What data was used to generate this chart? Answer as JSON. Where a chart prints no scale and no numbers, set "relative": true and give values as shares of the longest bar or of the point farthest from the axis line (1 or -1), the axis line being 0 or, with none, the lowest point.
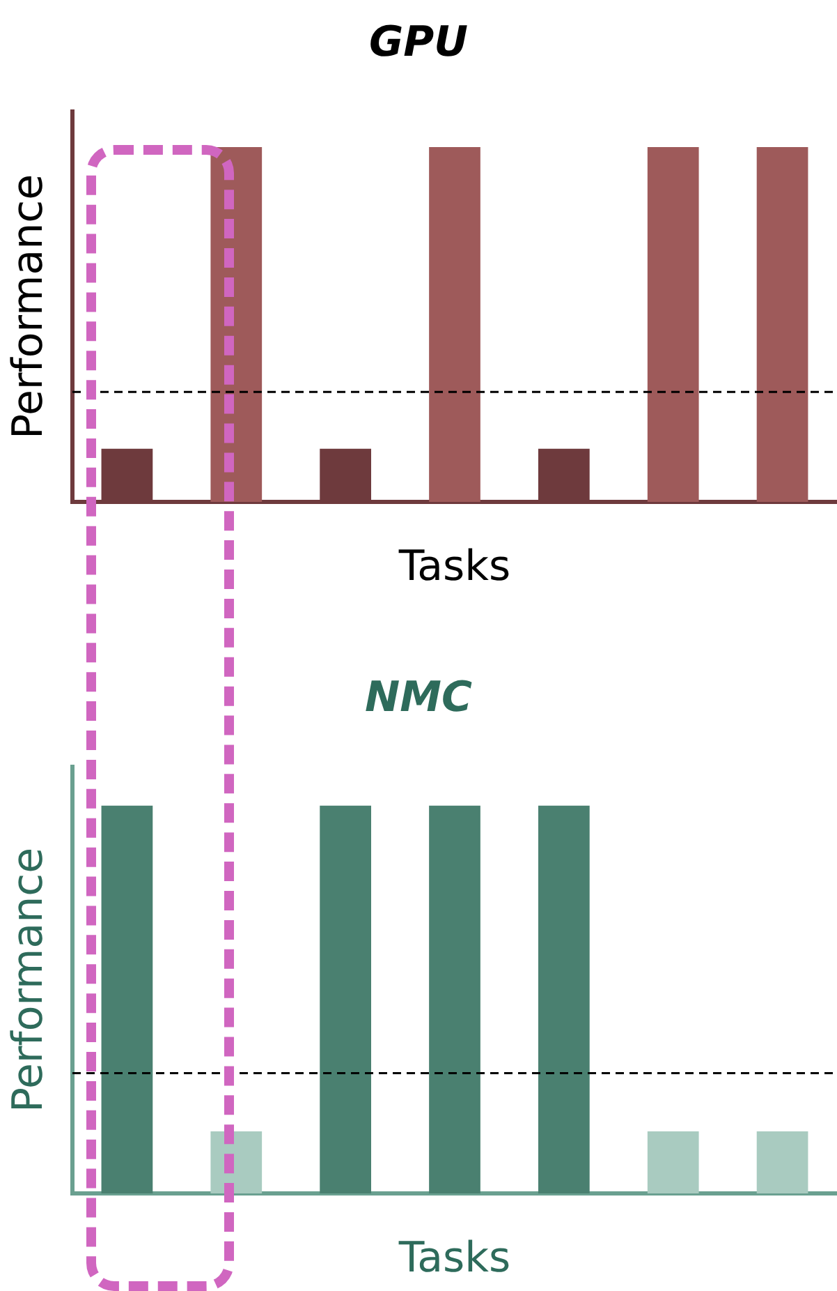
{
  "chart_data": [
    {
      "type": "bar",
      "title": "GPU",
      "xlabel": "Tasks",
      "ylabel": "Performance",
      "relative": true,
      "categories": [
        null,
        null,
        null,
        null,
        null,
        null,
        null
      ],
      "series": [
        {
          "colors": [
            "#6e3a3d",
            "#9e5a5a",
            "#6e3a3d",
            "#9e5a5a",
            "#6e3a3d",
            "#9e5a5a",
            "#9e5a5a"
          ],
          "values": [
            0.15,
            1,
            0.15,
            1,
            0.15,
            1,
            1
          ]
        }
      ],
      "ref_lines": [
        {
          "axis": "y",
          "value": 0.31,
          "color": "#000000",
          "line_style": "dashed"
        }
      ]
    },
    {
      "type": "bar",
      "title": "NMC",
      "xlabel": "Tasks",
      "ylabel": "Performance",
      "relative": true,
      "categories": [
        null,
        null,
        null,
        null,
        null,
        null,
        null
      ],
      "series": [
        {
          "colors": [
            "#4a8070",
            "#a9cbc0",
            "#4a8070",
            "#4a8070",
            "#4a8070",
            "#a9cbc0",
            "#a9cbc0"
          ],
          "values": [
            1,
            0.16,
            1,
            1,
            1,
            0.16,
            0.16
          ]
        }
      ],
      "ref_lines": [
        {
          "axis": "y",
          "value": 0.31,
          "color": "#000000",
          "line_style": "dashed"
        }
      ]
    }
  ]
}
